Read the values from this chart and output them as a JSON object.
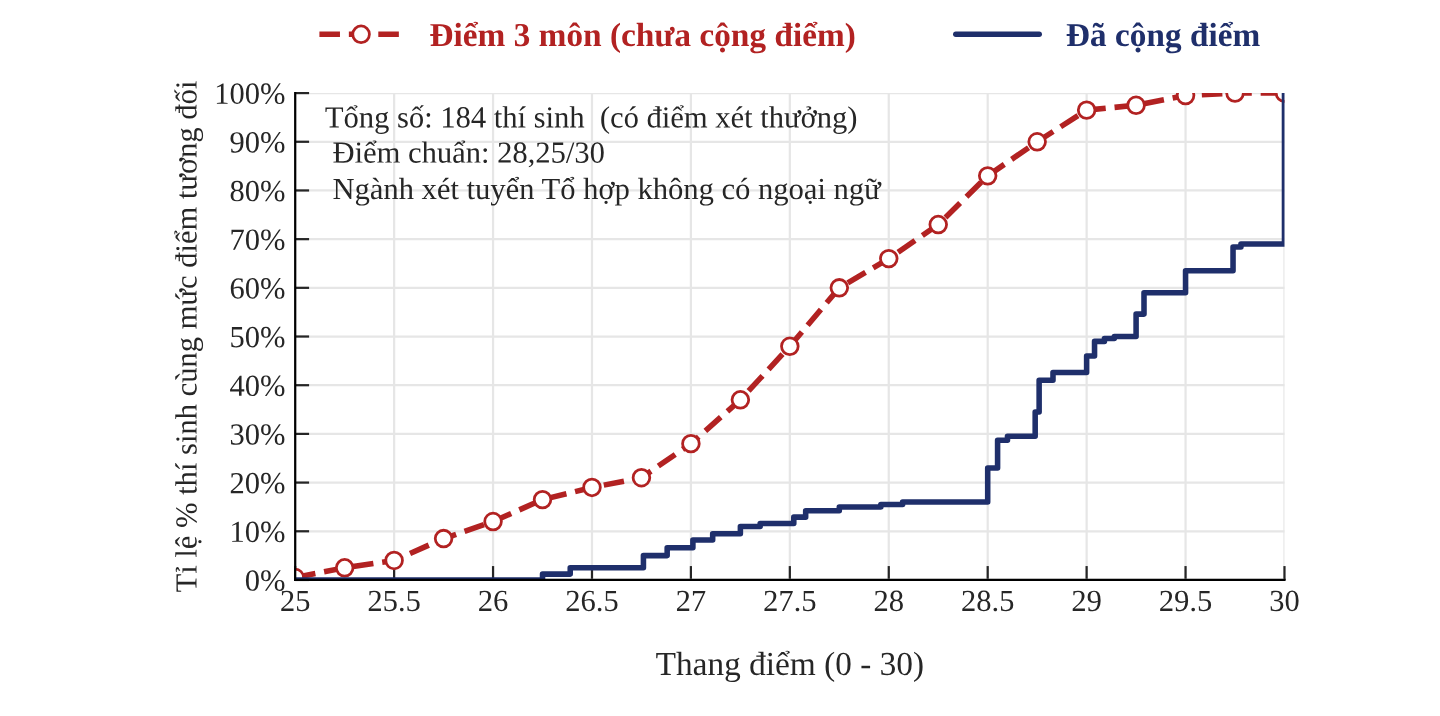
{
  "chart_data": {
    "type": "line",
    "xlabel": "Thang điểm (0 - 30)",
    "ylabel": "Tỉ lệ % thí sinh cùng mức điểm tương đối",
    "annotations": [
      "Tổng số: 184 thí sinh  (có điểm xét thưởng)",
      " Điểm chuẩn: 28,25/30",
      " Ngành xét tuyển Tổ hợp không có ngoại ngữ"
    ],
    "series": [
      {
        "name": "Điểm 3 môn (chưa cộng điểm)",
        "color": "#b22222",
        "marker": "circle",
        "line_style": "dashed",
        "x": [
          25,
          25.25,
          25.5,
          25.75,
          26,
          26.25,
          26.5,
          26.75,
          27,
          27.25,
          27.5,
          27.75,
          28,
          28.25,
          28.5,
          28.75,
          29,
          29.25,
          29.5,
          29.75,
          30
        ],
        "values": [
          0.5,
          2.5,
          4,
          8.5,
          12,
          16.5,
          19,
          21,
          28,
          37,
          48,
          60,
          66,
          73,
          83,
          90,
          96.5,
          97.5,
          99.5,
          100,
          100
        ]
      },
      {
        "name": "Đã cộng điểm",
        "type": "step",
        "color": "#1f2f6b",
        "marker": "none",
        "line_style": "solid",
        "x": [
          25,
          26.25,
          26.39,
          26.76,
          26.88,
          27.01,
          27.11,
          27.25,
          27.35,
          27.52,
          27.58,
          27.75,
          27.96,
          28.07,
          28.5,
          28.55,
          28.6,
          28.74,
          28.76,
          28.83,
          29.0,
          29.04,
          29.09,
          29.14,
          29.25,
          29.29,
          29.5,
          29.74,
          29.78,
          30,
          30
        ],
        "values": [
          0,
          1.2,
          2.5,
          5,
          6.6,
          8.2,
          9.5,
          11,
          11.6,
          12.9,
          14.2,
          15,
          15.5,
          16,
          23,
          28.7,
          29.5,
          34.5,
          41,
          42.6,
          46,
          49,
          49.6,
          50,
          54.6,
          59,
          63.5,
          68.4,
          69,
          69,
          100
        ]
      }
    ],
    "xlim": [
      25,
      30
    ],
    "xticks": [
      25,
      25.5,
      26,
      26.5,
      27,
      27.5,
      28,
      28.5,
      29,
      29.5,
      30
    ],
    "ylim": [
      0,
      100
    ],
    "yticks": [
      {
        "value": 0,
        "label": "0%"
      },
      {
        "value": 10,
        "label": "10%"
      },
      {
        "value": 20,
        "label": "20%"
      },
      {
        "value": 30,
        "label": "30%"
      },
      {
        "value": 40,
        "label": "40%"
      },
      {
        "value": 50,
        "label": "50%"
      },
      {
        "value": 60,
        "label": "60%"
      },
      {
        "value": 70,
        "label": "70%"
      },
      {
        "value": 80,
        "label": "80%"
      },
      {
        "value": 90,
        "label": "90%"
      },
      {
        "value": 100,
        "label": "100%"
      }
    ],
    "grid": true,
    "legend": "top"
  }
}
